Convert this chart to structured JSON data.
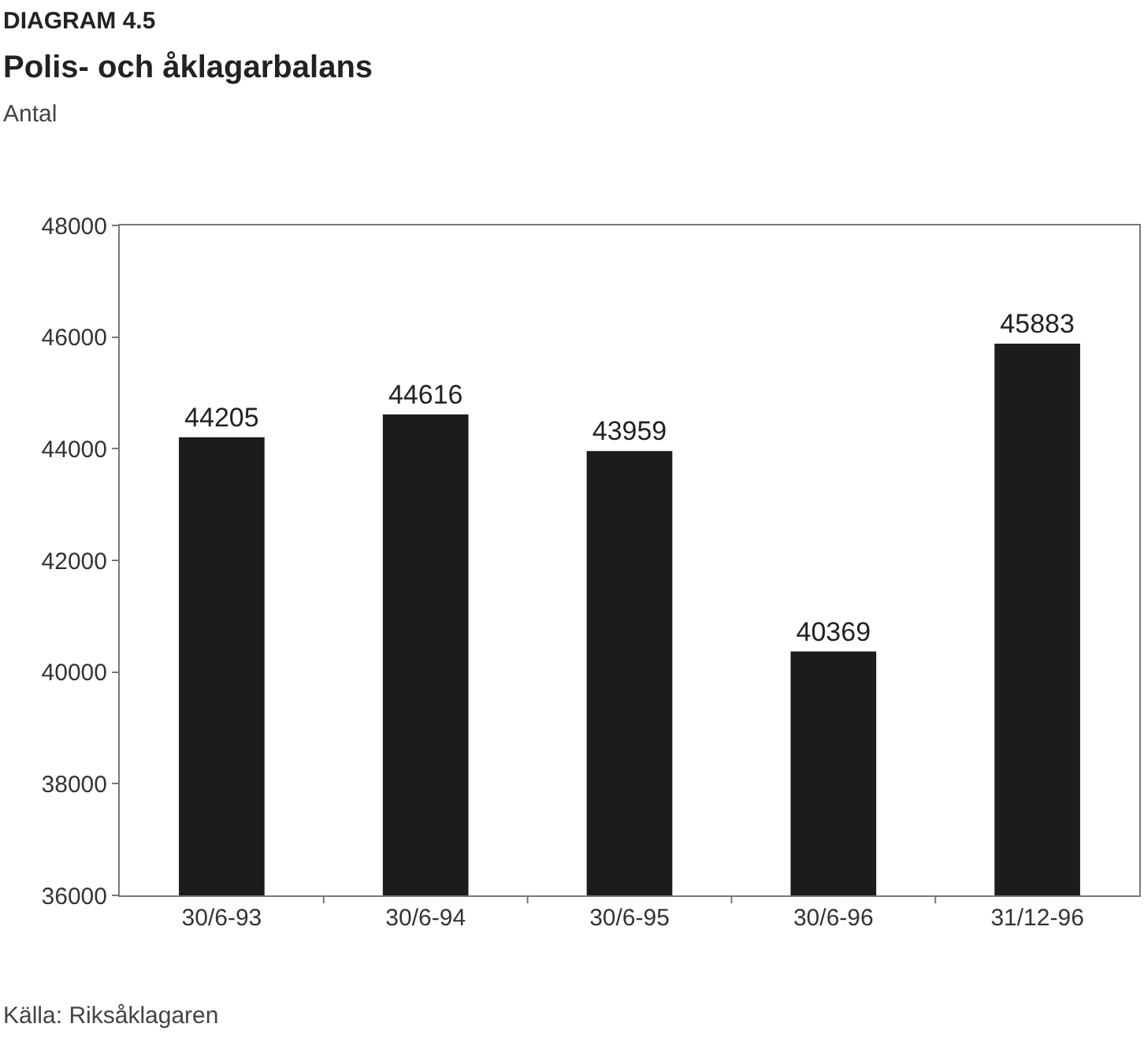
{
  "chart_data": {
    "type": "bar",
    "title": "DIAGRAM 4.5",
    "subtitle": "Polis- och åklagarbalans",
    "ylabel": "Antal",
    "categories": [
      "30/6-93",
      "30/6-94",
      "30/6-95",
      "30/6-96",
      "31/12-96"
    ],
    "values": [
      44205,
      44616,
      43959,
      40369,
      45883
    ],
    "color": "#1c1c1c",
    "ylim": [
      36000,
      48000
    ],
    "yticks": [
      36000,
      38000,
      40000,
      42000,
      44000,
      46000,
      48000
    ],
    "data_labels": true,
    "annotations": [
      "Källa: Riksåklagaren"
    ]
  }
}
